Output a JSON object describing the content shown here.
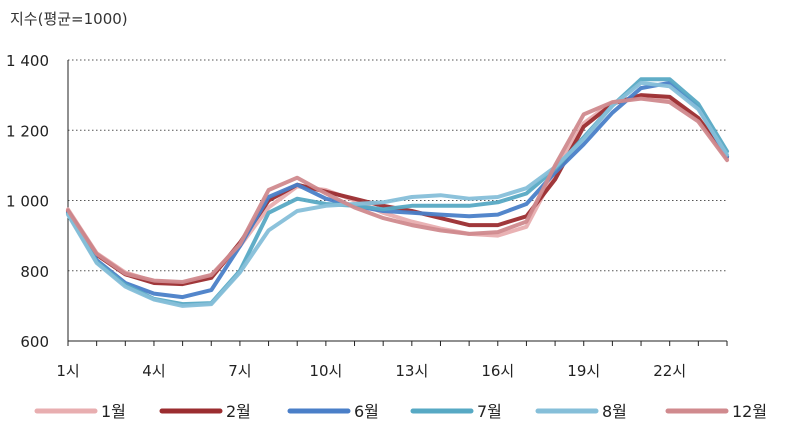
{
  "chart_data": {
    "type": "line",
    "unit_label": "지수(평균=1000)",
    "y_ticks": [
      "1 400",
      "1 200",
      "1 000",
      "800",
      "600"
    ],
    "y_tick_values": [
      1400,
      1200,
      1000,
      800,
      600
    ],
    "x_tick_labels": [
      "1시",
      "4시",
      "7시",
      "10시",
      "13시",
      "16시",
      "19시",
      "22시"
    ],
    "x_tick_hours": [
      1,
      4,
      7,
      10,
      13,
      16,
      19,
      22
    ],
    "x": [
      1,
      2,
      3,
      4,
      5,
      6,
      7,
      8,
      9,
      10,
      11,
      12,
      13,
      14,
      15,
      16,
      17,
      18,
      19,
      20,
      21,
      22,
      23,
      24
    ],
    "ylim": [
      600,
      1400
    ],
    "xlim": [
      1,
      24
    ],
    "grid": "horizontal-dotted",
    "legend_position": "bottom",
    "series": [
      {
        "name": "1월",
        "color": "#e8aeb0",
        "values": [
          975,
          850,
          795,
          770,
          765,
          785,
          870,
          980,
          1040,
          1030,
          1000,
          965,
          940,
          920,
          905,
          900,
          925,
          1080,
          1220,
          1280,
          1295,
          1290,
          1230,
          1120
        ]
      },
      {
        "name": "2월",
        "color": "#9b2d30",
        "values": [
          970,
          845,
          790,
          765,
          762,
          780,
          880,
          1000,
          1045,
          1025,
          1005,
          985,
          970,
          950,
          930,
          930,
          955,
          1060,
          1210,
          1275,
          1300,
          1295,
          1235,
          1125
        ]
      },
      {
        "name": "6월",
        "color": "#4a7fc8",
        "values": [
          965,
          830,
          765,
          735,
          725,
          745,
          870,
          1010,
          1045,
          1005,
          985,
          970,
          965,
          960,
          955,
          960,
          990,
          1080,
          1160,
          1250,
          1320,
          1335,
          1265,
          1125
        ]
      },
      {
        "name": "7월",
        "color": "#57a9c4",
        "values": [
          962,
          825,
          760,
          720,
          705,
          708,
          800,
          965,
          1005,
          990,
          985,
          975,
          985,
          985,
          985,
          995,
          1020,
          1090,
          1180,
          1270,
          1345,
          1345,
          1275,
          1140
        ]
      },
      {
        "name": "8월",
        "color": "#86bfd9",
        "values": [
          960,
          822,
          755,
          718,
          700,
          705,
          795,
          915,
          970,
          985,
          990,
          995,
          1010,
          1015,
          1005,
          1010,
          1035,
          1095,
          1175,
          1270,
          1335,
          1325,
          1260,
          1130
        ]
      },
      {
        "name": "12월",
        "color": "#d08a8e",
        "values": [
          972,
          848,
          792,
          772,
          768,
          788,
          875,
          1030,
          1065,
          1020,
          980,
          950,
          930,
          915,
          905,
          910,
          940,
          1100,
          1245,
          1280,
          1290,
          1280,
          1225,
          1115
        ]
      }
    ]
  }
}
